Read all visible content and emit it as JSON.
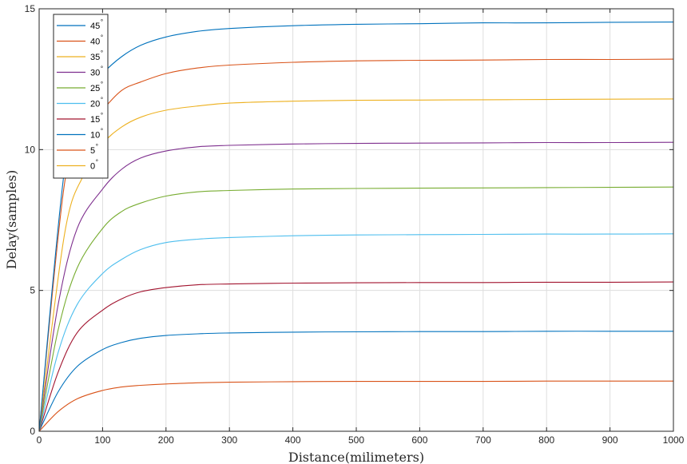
{
  "chart_data": {
    "type": "line",
    "xlabel": "Distance(milimeters)",
    "ylabel": "Delay(samples)",
    "xlim": [
      0,
      1000
    ],
    "ylim": [
      0,
      15
    ],
    "xticks": [
      0,
      100,
      200,
      300,
      400,
      500,
      600,
      700,
      800,
      900,
      1000
    ],
    "yticks": [
      0,
      5,
      10,
      15
    ],
    "grid": true,
    "legend_position": "top-left",
    "degree_symbol": "°",
    "series": [
      {
        "name": "45",
        "color": "#0072BD",
        "x": [
          0,
          40,
          70,
          100,
          130,
          160,
          200,
          250,
          300,
          400,
          500,
          600,
          700,
          800,
          900,
          1000
        ],
        "y": [
          0,
          9.3,
          11.9,
          12.7,
          13.3,
          13.7,
          14.0,
          14.2,
          14.3,
          14.4,
          14.45,
          14.47,
          14.5,
          14.5,
          14.52,
          14.53
        ]
      },
      {
        "name": "40",
        "color": "#D95319",
        "x": [
          0,
          40,
          70,
          100,
          130,
          160,
          200,
          250,
          300,
          400,
          500,
          600,
          700,
          800,
          900,
          1000
        ],
        "y": [
          0,
          8.8,
          10.5,
          11.4,
          12.1,
          12.4,
          12.7,
          12.9,
          13.0,
          13.1,
          13.15,
          13.17,
          13.18,
          13.2,
          13.2,
          13.21
        ]
      },
      {
        "name": "35",
        "color": "#EDB120",
        "x": [
          0,
          40,
          70,
          100,
          130,
          160,
          200,
          250,
          300,
          400,
          500,
          600,
          700,
          800,
          900,
          1000
        ],
        "y": [
          0,
          7.0,
          9.1,
          10.2,
          10.8,
          11.15,
          11.4,
          11.55,
          11.65,
          11.72,
          11.75,
          11.76,
          11.77,
          11.78,
          11.79,
          11.8
        ]
      },
      {
        "name": "30",
        "color": "#7E2F8E",
        "x": [
          0,
          30,
          60,
          100,
          130,
          160,
          200,
          250,
          300,
          400,
          500,
          600,
          700,
          800,
          900,
          1000
        ],
        "y": [
          0,
          4.5,
          7.2,
          8.6,
          9.3,
          9.7,
          9.95,
          10.1,
          10.15,
          10.2,
          10.22,
          10.23,
          10.24,
          10.25,
          10.25,
          10.26
        ]
      },
      {
        "name": "25",
        "color": "#77AC30",
        "x": [
          0,
          30,
          60,
          100,
          130,
          160,
          200,
          250,
          300,
          400,
          500,
          600,
          700,
          800,
          900,
          1000
        ],
        "y": [
          0,
          3.6,
          5.8,
          7.2,
          7.8,
          8.1,
          8.35,
          8.5,
          8.55,
          8.6,
          8.62,
          8.63,
          8.64,
          8.65,
          8.66,
          8.67
        ]
      },
      {
        "name": "20",
        "color": "#4DBEEE",
        "x": [
          0,
          30,
          60,
          100,
          130,
          160,
          200,
          250,
          300,
          400,
          500,
          600,
          700,
          800,
          900,
          1000
        ],
        "y": [
          0,
          2.8,
          4.5,
          5.6,
          6.1,
          6.45,
          6.7,
          6.82,
          6.88,
          6.94,
          6.97,
          6.98,
          6.99,
          7.0,
          7.0,
          7.01
        ]
      },
      {
        "name": "15",
        "color": "#A2142F",
        "x": [
          0,
          30,
          60,
          100,
          130,
          160,
          200,
          250,
          300,
          400,
          500,
          600,
          700,
          800,
          900,
          1000
        ],
        "y": [
          0,
          2.1,
          3.5,
          4.3,
          4.7,
          4.95,
          5.1,
          5.2,
          5.23,
          5.26,
          5.27,
          5.28,
          5.28,
          5.29,
          5.29,
          5.3
        ]
      },
      {
        "name": "10",
        "color": "#0072BD",
        "x": [
          0,
          30,
          60,
          100,
          130,
          160,
          200,
          250,
          300,
          400,
          500,
          600,
          700,
          800,
          900,
          1000
        ],
        "y": [
          0,
          1.4,
          2.3,
          2.9,
          3.15,
          3.3,
          3.4,
          3.46,
          3.49,
          3.52,
          3.53,
          3.54,
          3.54,
          3.55,
          3.55,
          3.55
        ]
      },
      {
        "name": "5",
        "color": "#D95319",
        "x": [
          0,
          30,
          60,
          100,
          130,
          160,
          200,
          250,
          300,
          400,
          500,
          600,
          700,
          800,
          900,
          1000
        ],
        "y": [
          0,
          0.7,
          1.15,
          1.45,
          1.57,
          1.63,
          1.68,
          1.72,
          1.74,
          1.76,
          1.77,
          1.77,
          1.77,
          1.78,
          1.78,
          1.78
        ]
      },
      {
        "name": "0",
        "color": "#EDB120",
        "x": [
          0,
          1000
        ],
        "y": [
          0,
          0
        ]
      }
    ]
  }
}
